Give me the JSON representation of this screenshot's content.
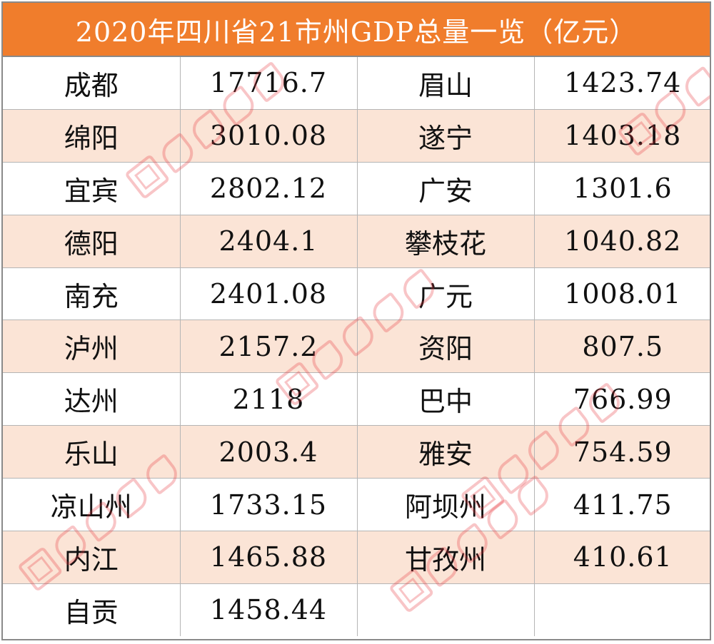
{
  "title": "2020年四川省21市州GDP总量一览（亿元）",
  "rows": [
    {
      "left_city": "成都",
      "left_value": "17716.7",
      "right_city": "眉山",
      "right_value": "1423.74"
    },
    {
      "left_city": "绵阳",
      "left_value": "3010.08",
      "right_city": "遂宁",
      "right_value": "1403.18"
    },
    {
      "left_city": "宜宾",
      "left_value": "2802.12",
      "right_city": "广安",
      "right_value": "1301.6"
    },
    {
      "left_city": "德阳",
      "left_value": "2404.1",
      "right_city": "攀枝花",
      "right_value": "1040.82"
    },
    {
      "left_city": "南充",
      "left_value": "2401.08",
      "right_city": "广元",
      "right_value": "1008.01"
    },
    {
      "left_city": "泸州",
      "left_value": "2157.2",
      "right_city": "资阳",
      "right_value": "807.5"
    },
    {
      "left_city": "达州",
      "left_value": "2118",
      "right_city": "巴中",
      "right_value": "766.99"
    },
    {
      "left_city": "乐山",
      "left_value": "2003.4",
      "right_city": "雅安",
      "right_value": "754.59"
    },
    {
      "left_city": "凉山州",
      "left_value": "1733.15",
      "right_city": "阿坝州",
      "right_value": "411.75"
    },
    {
      "left_city": "内江",
      "left_value": "1465.88",
      "right_city": "甘孜州",
      "right_value": "410.61"
    },
    {
      "left_city": "自贡",
      "left_value": "1458.44",
      "right_city": "",
      "right_value": ""
    }
  ],
  "colors": {
    "title_background": "#f07d2c",
    "alternate_row": "#fbe4d6",
    "watermark": "#e8343a"
  },
  "watermark_text": "四川发布"
}
